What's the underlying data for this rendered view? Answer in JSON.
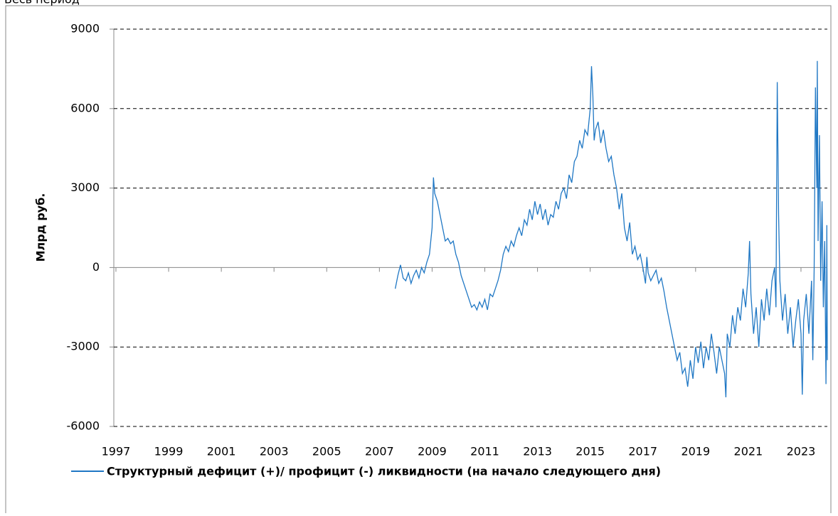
{
  "header": {
    "title": "Весь период"
  },
  "chart_data": {
    "type": "line",
    "ylabel": "Млрд руб.",
    "xlim": [
      1996.92,
      2024.0
    ],
    "xticks": [
      1997,
      1999,
      2001,
      2003,
      2005,
      2007,
      2009,
      2011,
      2013,
      2015,
      2017,
      2019,
      2021,
      2023
    ],
    "ylim": [
      -6000,
      9000
    ],
    "yticks": [
      9000,
      6000,
      3000,
      0,
      -3000,
      -6000
    ],
    "grid": true,
    "legend": "bottom",
    "x": [
      2007.6,
      2007.7,
      2007.8,
      2007.9,
      2008.0,
      2008.1,
      2008.2,
      2008.3,
      2008.4,
      2008.5,
      2008.6,
      2008.7,
      2008.8,
      2008.9,
      2009.0,
      2009.05,
      2009.1,
      2009.2,
      2009.3,
      2009.4,
      2009.5,
      2009.6,
      2009.7,
      2009.8,
      2009.9,
      2010.0,
      2010.1,
      2010.2,
      2010.3,
      2010.4,
      2010.5,
      2010.6,
      2010.7,
      2010.8,
      2010.9,
      2011.0,
      2011.1,
      2011.2,
      2011.3,
      2011.4,
      2011.5,
      2011.6,
      2011.7,
      2011.8,
      2011.9,
      2012.0,
      2012.1,
      2012.2,
      2012.3,
      2012.4,
      2012.5,
      2012.6,
      2012.7,
      2012.8,
      2012.9,
      2013.0,
      2013.1,
      2013.2,
      2013.3,
      2013.4,
      2013.5,
      2013.6,
      2013.7,
      2013.8,
      2013.9,
      2014.0,
      2014.1,
      2014.2,
      2014.3,
      2014.4,
      2014.5,
      2014.6,
      2014.7,
      2014.8,
      2014.9,
      2015.0,
      2015.05,
      2015.1,
      2015.15,
      2015.2,
      2015.3,
      2015.4,
      2015.5,
      2015.6,
      2015.7,
      2015.8,
      2015.9,
      2016.0,
      2016.1,
      2016.2,
      2016.3,
      2016.4,
      2016.5,
      2016.6,
      2016.7,
      2016.8,
      2016.9,
      2017.0,
      2017.1,
      2017.15,
      2017.2,
      2017.3,
      2017.4,
      2017.5,
      2017.6,
      2017.7,
      2017.8,
      2017.9,
      2018.0,
      2018.1,
      2018.2,
      2018.3,
      2018.4,
      2018.5,
      2018.6,
      2018.7,
      2018.8,
      2018.9,
      2019.0,
      2019.1,
      2019.2,
      2019.3,
      2019.4,
      2019.5,
      2019.6,
      2019.7,
      2019.8,
      2019.9,
      2020.0,
      2020.1,
      2020.15,
      2020.2,
      2020.3,
      2020.4,
      2020.5,
      2020.6,
      2020.7,
      2020.8,
      2020.9,
      2021.0,
      2021.05,
      2021.1,
      2021.2,
      2021.3,
      2021.4,
      2021.5,
      2021.6,
      2021.7,
      2021.8,
      2021.9,
      2022.0,
      2022.05,
      2022.1,
      2022.15,
      2022.2,
      2022.3,
      2022.4,
      2022.5,
      2022.6,
      2022.7,
      2022.8,
      2022.9,
      2023.0,
      2023.05,
      2023.1,
      2023.2,
      2023.3,
      2023.4,
      2023.45,
      2023.5,
      2023.55,
      2023.6,
      2023.62,
      2023.65,
      2023.7,
      2023.75,
      2023.8,
      2023.85,
      2023.9,
      2023.95,
      2023.97,
      2023.98,
      2024.0
    ],
    "series": [
      {
        "name": "Структурный  дефицит (+)/ профицит  (-) ликвидности  (на начало  следующего дня)",
        "color": "#1f77c4",
        "values": [
          -800,
          -300,
          100,
          -400,
          -500,
          -200,
          -600,
          -300,
          -100,
          -400,
          0,
          -200,
          200,
          500,
          1500,
          3400,
          2800,
          2500,
          2000,
          1500,
          1000,
          1100,
          900,
          1000,
          500,
          200,
          -300,
          -600,
          -900,
          -1200,
          -1500,
          -1400,
          -1600,
          -1300,
          -1500,
          -1200,
          -1600,
          -1000,
          -1100,
          -800,
          -500,
          -100,
          500,
          800,
          600,
          1000,
          800,
          1200,
          1500,
          1200,
          1800,
          1600,
          2200,
          1800,
          2500,
          2000,
          2400,
          1800,
          2200,
          1600,
          2000,
          1900,
          2500,
          2200,
          2800,
          3000,
          2600,
          3500,
          3200,
          4000,
          4200,
          4800,
          4500,
          5200,
          5000,
          6000,
          7600,
          6500,
          4800,
          5200,
          5500,
          4700,
          5200,
          4500,
          4000,
          4200,
          3500,
          3000,
          2200,
          2800,
          1500,
          1000,
          1700,
          500,
          800,
          300,
          500,
          0,
          -600,
          400,
          -200,
          -500,
          -300,
          -100,
          -600,
          -400,
          -900,
          -1500,
          -2000,
          -2500,
          -3000,
          -3500,
          -3200,
          -4000,
          -3800,
          -4500,
          -3500,
          -4200,
          -3000,
          -3600,
          -2800,
          -3800,
          -3000,
          -3500,
          -2500,
          -3200,
          -4000,
          -3000,
          -3500,
          -4000,
          -4900,
          -2500,
          -3000,
          -1800,
          -2500,
          -1500,
          -2000,
          -800,
          -1500,
          -200,
          1000,
          -1000,
          -2500,
          -1500,
          -3000,
          -1200,
          -2000,
          -800,
          -1800,
          -500,
          0,
          -1500,
          7000,
          2000,
          -500,
          -2000,
          -1000,
          -2500,
          -1500,
          -3000,
          -2000,
          -1200,
          -2500,
          -4800,
          -2000,
          -1000,
          -2500,
          -500,
          -3500,
          0,
          6800,
          3000,
          7800,
          1000,
          5000,
          -500,
          2500,
          -1500,
          1000,
          -4400,
          -1500,
          1600,
          -3500
        ]
      }
    ]
  }
}
